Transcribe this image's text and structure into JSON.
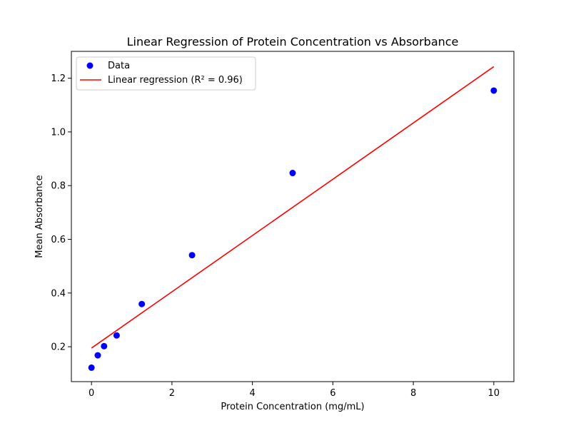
{
  "chart_data": {
    "type": "scatter",
    "title": "Linear Regression of Protein Concentration vs Absorbance",
    "xlabel": "Protein Concentration (mg/mL)",
    "ylabel": "Mean Absorbance",
    "xlim": [
      -0.5,
      10.5
    ],
    "ylim": [
      0.07,
      1.3
    ],
    "x_ticks": [
      0,
      2,
      4,
      6,
      8,
      10
    ],
    "y_ticks": [
      0.2,
      0.4,
      0.6,
      0.8,
      1.0,
      1.2
    ],
    "x_tick_labels": [
      "0",
      "2",
      "4",
      "6",
      "8",
      "10"
    ],
    "y_tick_labels": [
      "0.2",
      "0.4",
      "0.6",
      "0.8",
      "1.0",
      "1.2"
    ],
    "grid": false,
    "legend_position": "upper-left",
    "series": [
      {
        "name": "Data",
        "kind": "scatter",
        "color": "#0000ff",
        "x": [
          0,
          0.156,
          0.3125,
          0.625,
          1.25,
          2.5,
          5,
          10
        ],
        "y": [
          0.122,
          0.168,
          0.202,
          0.242,
          0.359,
          0.541,
          0.847,
          1.154
        ]
      },
      {
        "name": "Linear regression (R² = 0.96)",
        "kind": "line",
        "color": "#ff0000",
        "x": [
          0,
          10
        ],
        "y": [
          0.195,
          1.243
        ]
      }
    ]
  }
}
